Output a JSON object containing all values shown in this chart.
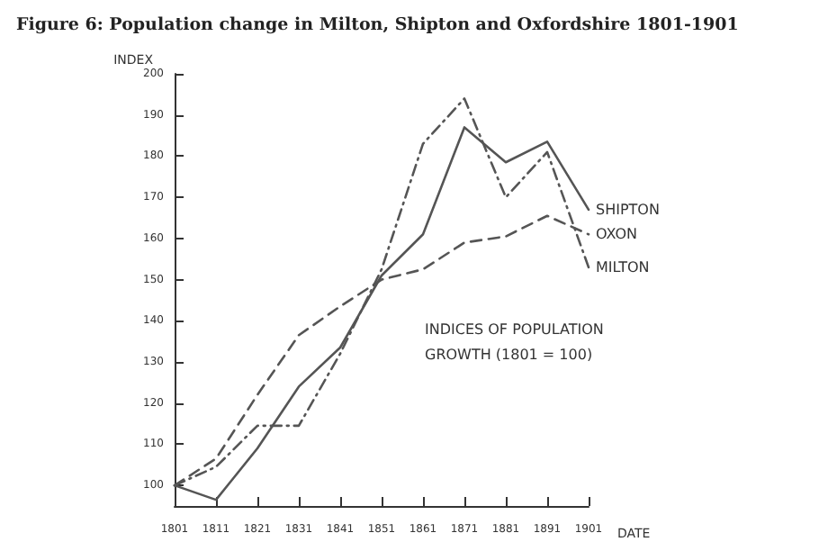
{
  "chart_data": {
    "type": "line",
    "title": "Figure 6: Population change in Milton, Shipton and Oxfordshire 1801-1901",
    "xlabel": "DATE",
    "ylabel": "INDEX",
    "x": [
      1801,
      1811,
      1821,
      1831,
      1841,
      1851,
      1861,
      1871,
      1881,
      1891,
      1901
    ],
    "series": [
      {
        "name": "SHIPTON",
        "color": "#555555",
        "line_style": "solid",
        "values": [
          100,
          96.5,
          109,
          124,
          133.5,
          151,
          161,
          187,
          178.5,
          183.5,
          167
        ]
      },
      {
        "name": "OXON",
        "color": "#555555",
        "line_style": "dashed",
        "values": [
          100,
          106.5,
          122,
          136.5,
          143.5,
          150,
          152.5,
          159,
          160.5,
          165.5,
          161
        ]
      },
      {
        "name": "MILTON",
        "color": "#555555",
        "line_style": "dotted",
        "values": [
          100,
          104.5,
          114.5,
          114.5,
          132,
          152.5,
          183,
          194,
          170,
          181,
          153
        ]
      }
    ],
    "xlim": [
      1801,
      1901
    ],
    "xticks": [
      1801,
      1811,
      1821,
      1831,
      1841,
      1851,
      1861,
      1871,
      1881,
      1891,
      1901
    ],
    "ylim": [
      95,
      200
    ],
    "yticks": [
      100,
      110,
      120,
      130,
      140,
      150,
      160,
      170,
      180,
      190,
      200
    ],
    "grid": false,
    "legend": false,
    "marker": "none",
    "annotations": [
      "INDICES OF POPULATION\nGROWTH (1801 = 100)"
    ]
  }
}
